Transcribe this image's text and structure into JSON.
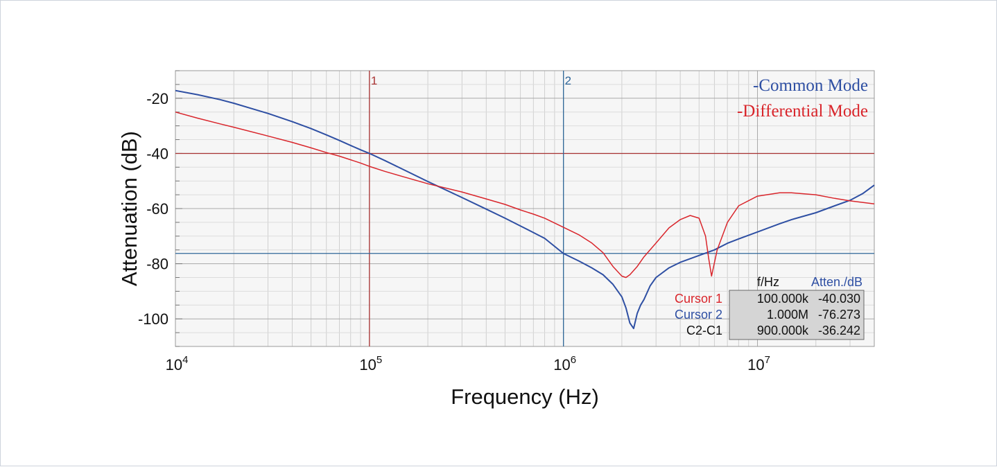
{
  "chart_data": {
    "type": "line",
    "xlabel": "Frequency (Hz)",
    "ylabel": "Attenuation (dB)",
    "xscale": "log",
    "xlim": [
      10000,
      40000000
    ],
    "ylim": [
      -110,
      -10
    ],
    "x_ticks": [
      {
        "value": 10000,
        "base": "10",
        "exp": "4"
      },
      {
        "value": 100000,
        "base": "10",
        "exp": "5"
      },
      {
        "value": 1000000,
        "base": "10",
        "exp": "6"
      },
      {
        "value": 10000000,
        "base": "10",
        "exp": "7"
      }
    ],
    "y_ticks": [
      {
        "value": -20,
        "label": "-20"
      },
      {
        "value": -40,
        "label": "-40"
      },
      {
        "value": -60,
        "label": "-60"
      },
      {
        "value": -80,
        "label": "-80"
      },
      {
        "value": -100,
        "label": "-100"
      }
    ],
    "grid": true,
    "legend_position": "top-right",
    "series": [
      {
        "name": "-Common Mode",
        "color": "#2e4fa3",
        "x": [
          10000,
          13000,
          17000,
          20000,
          30000,
          40000,
          50000,
          60000,
          70000,
          80000,
          90000,
          100000,
          120000,
          150000,
          200000,
          300000,
          400000,
          500000,
          600000,
          700000,
          800000,
          1000000,
          1200000,
          1400000,
          1600000,
          1800000,
          2000000,
          2100000,
          2200000,
          2300000,
          2400000,
          2500000,
          2600000,
          2800000,
          3000000,
          3500000,
          4000000,
          5000000,
          6000000,
          7000000,
          8000000,
          10000000,
          13000000,
          15000000,
          20000000,
          25000000,
          30000000,
          35000000,
          40000000
        ],
        "values": [
          -17.2,
          -18.7,
          -20.5,
          -21.8,
          -25.5,
          -28.5,
          -31.0,
          -33.3,
          -35.3,
          -37.1,
          -38.7,
          -40.0,
          -42.6,
          -45.9,
          -50.2,
          -56.0,
          -60.2,
          -63.5,
          -66.3,
          -68.7,
          -70.8,
          -76.3,
          -79.0,
          -81.5,
          -84.0,
          -87.5,
          -92.0,
          -96.0,
          -101.5,
          -103.5,
          -98.0,
          -95.0,
          -93.0,
          -88.0,
          -85.0,
          -81.5,
          -79.5,
          -77.0,
          -75.0,
          -72.6,
          -71.0,
          -68.5,
          -65.5,
          -64.0,
          -61.5,
          -59.0,
          -57.0,
          -54.5,
          -51.5
        ]
      },
      {
        "name": "-Differential Mode",
        "color": "#d9252b",
        "x": [
          10000,
          13000,
          17000,
          20000,
          30000,
          40000,
          50000,
          60000,
          70000,
          80000,
          90000,
          100000,
          120000,
          150000,
          200000,
          300000,
          400000,
          500000,
          600000,
          700000,
          800000,
          1000000,
          1200000,
          1400000,
          1600000,
          1800000,
          2000000,
          2100000,
          2200000,
          2400000,
          2600000,
          3000000,
          3500000,
          4000000,
          4500000,
          5000000,
          5400000,
          5600000,
          5800000,
          6200000,
          7000000,
          8000000,
          10000000,
          13000000,
          15000000,
          20000000,
          25000000,
          30000000,
          40000000
        ],
        "values": [
          -25.0,
          -27.2,
          -29.3,
          -30.5,
          -33.7,
          -36.0,
          -38.0,
          -39.7,
          -41.0,
          -42.3,
          -43.5,
          -44.7,
          -46.5,
          -48.5,
          -51.0,
          -54.0,
          -56.5,
          -58.5,
          -60.5,
          -62.0,
          -63.5,
          -66.8,
          -69.5,
          -72.5,
          -76.0,
          -81.0,
          -84.5,
          -85.0,
          -84.0,
          -81.0,
          -77.5,
          -72.5,
          -67.0,
          -64.0,
          -62.5,
          -63.5,
          -70.0,
          -78.0,
          -84.5,
          -75.0,
          -65.0,
          -59.0,
          -55.5,
          -54.3,
          -54.3,
          -55.0,
          -56.3,
          -57.2,
          -58.3
        ]
      }
    ],
    "cursors": [
      {
        "id": "1",
        "x": 100000,
        "y": -40.03,
        "color": "#a93333"
      },
      {
        "id": "2",
        "x": 1000000,
        "y": -76.273,
        "color": "#2e6699"
      }
    ],
    "cursor_table": {
      "header_f": "f/Hz",
      "header_atten": "Atten./dB",
      "rows": [
        {
          "label": "Cursor 1",
          "f": "100.000k",
          "atten": "-40.030",
          "color": "#d9252b"
        },
        {
          "label": "Cursor 2",
          "f": "1.000M",
          "atten": "-76.273",
          "color": "#2e4fa3"
        },
        {
          "label": "C2-C1",
          "f": "900.000k",
          "atten": "-36.242",
          "color": "#111111"
        }
      ]
    }
  }
}
